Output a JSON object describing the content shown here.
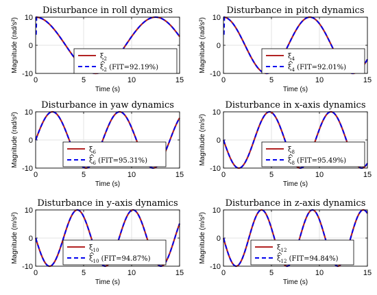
{
  "chart_data": [
    {
      "type": "line",
      "title": "Disturbance in roll dynamics",
      "xlabel": "Time (s)",
      "ylabel": "Magnitude (rad/s²)",
      "xlim": [
        0,
        15
      ],
      "ylim": [
        -10,
        10
      ],
      "xticks": [
        "0",
        "5",
        "10",
        "15"
      ],
      "yticks": [
        "-10",
        "0",
        "10"
      ],
      "wave": {
        "amplitude": 10,
        "period": 12.5,
        "phase": "cos"
      },
      "legend_position": "center-right",
      "series": [
        {
          "name": "ξ2",
          "color": "#b22222",
          "style": "solid"
        },
        {
          "name": "ξ̂2 (FIT=92.19%)",
          "color": "#0000ee",
          "style": "dashed"
        }
      ],
      "legend": [
        {
          "sym": "ξ",
          "sub": "2",
          "hat": false,
          "fit": ""
        },
        {
          "sym": "ξ",
          "sub": "2",
          "hat": true,
          "fit": " (FIT=92.19%)"
        }
      ]
    },
    {
      "type": "line",
      "title": "Disturbance in pitch dynamics",
      "xlabel": "Time (s)",
      "ylabel": "Magnitude (rad/s²)",
      "xlim": [
        0,
        15
      ],
      "ylim": [
        -10,
        10
      ],
      "xticks": [
        "0",
        "5",
        "10",
        "15"
      ],
      "yticks": [
        "-10",
        "0",
        "10"
      ],
      "wave": {
        "amplitude": 10,
        "period": 9.0,
        "phase": "cos"
      },
      "legend_position": "center-right",
      "series": [
        {
          "name": "ξ4",
          "color": "#b22222",
          "style": "solid"
        },
        {
          "name": "ξ̂4 (FIT=92.01%)",
          "color": "#0000ee",
          "style": "dashed"
        }
      ],
      "legend": [
        {
          "sym": "ξ",
          "sub": "4",
          "hat": false,
          "fit": ""
        },
        {
          "sym": "ξ",
          "sub": "4",
          "hat": true,
          "fit": " (FIT=92.01%)"
        }
      ]
    },
    {
      "type": "line",
      "title": "Disturbance in yaw dynamics",
      "xlabel": "Time (s)",
      "ylabel": "Magnitude (rad/s²)",
      "xlim": [
        0,
        15
      ],
      "ylim": [
        -10,
        10
      ],
      "xticks": [
        "0",
        "5",
        "10",
        "15"
      ],
      "yticks": [
        "-10",
        "0",
        "10"
      ],
      "wave": {
        "amplitude": 10,
        "period": 7.0,
        "phase": "sin"
      },
      "legend_position": "bottom-center",
      "series": [
        {
          "name": "ξ6",
          "color": "#b22222",
          "style": "solid"
        },
        {
          "name": "ξ̂6 (FIT=95.31%)",
          "color": "#0000ee",
          "style": "dashed"
        }
      ],
      "legend": [
        {
          "sym": "ξ",
          "sub": "6",
          "hat": false,
          "fit": ""
        },
        {
          "sym": "ξ",
          "sub": "6",
          "hat": true,
          "fit": " (FIT=95.31%)"
        }
      ]
    },
    {
      "type": "line",
      "title": "Disturbance in x-axis dynamics",
      "xlabel": "Time (s)",
      "ylabel": "Magnitude (m/s²)",
      "xlim": [
        0,
        15
      ],
      "ylim": [
        -10,
        10
      ],
      "xticks": [
        "0",
        "5",
        "10",
        "15"
      ],
      "yticks": [
        "-10",
        "0",
        "10"
      ],
      "wave": {
        "amplitude": 10,
        "period": 6.4,
        "phase": "-sin"
      },
      "legend_position": "bottom-right",
      "series": [
        {
          "name": "ξ8",
          "color": "#b22222",
          "style": "solid"
        },
        {
          "name": "ξ̂8 (FIT=95.49%)",
          "color": "#0000ee",
          "style": "dashed"
        }
      ],
      "legend": [
        {
          "sym": "ξ",
          "sub": "8",
          "hat": false,
          "fit": ""
        },
        {
          "sym": "ξ",
          "sub": "8",
          "hat": true,
          "fit": " (FIT=95.49%)"
        }
      ]
    },
    {
      "type": "line",
      "title": "Disturbance in y-axis dynamics",
      "xlabel": "Time (s)",
      "ylabel": "Magnitude (m/s²)",
      "xlim": [
        0,
        15
      ],
      "ylim": [
        -10,
        10
      ],
      "xticks": [
        "0",
        "5",
        "10",
        "15"
      ],
      "yticks": [
        "-10",
        "0",
        "10"
      ],
      "wave": {
        "amplitude": 10,
        "period": 5.8,
        "phase": "-sin"
      },
      "legend_position": "bottom-center",
      "series": [
        {
          "name": "ξ10",
          "color": "#b22222",
          "style": "solid"
        },
        {
          "name": "ξ̂10 (FIT=94.87%)",
          "color": "#0000ee",
          "style": "dashed"
        }
      ],
      "legend": [
        {
          "sym": "ξ",
          "sub": "10",
          "hat": false,
          "fit": ""
        },
        {
          "sym": "ξ",
          "sub": "10",
          "hat": true,
          "fit": " (FIT=94.87%)"
        }
      ]
    },
    {
      "type": "line",
      "title": "Disturbance in z-axis dynamics",
      "xlabel": "Time (s)",
      "ylabel": "Magnitude (m/s²)",
      "xlim": [
        0,
        15
      ],
      "ylim": [
        -10,
        10
      ],
      "xticks": [
        "0",
        "5",
        "10",
        "15"
      ],
      "yticks": [
        "-10",
        "0",
        "10"
      ],
      "wave": {
        "amplitude": 10,
        "period": 5.3,
        "phase": "-sin"
      },
      "legend_position": "bottom-center",
      "series": [
        {
          "name": "ξ12",
          "color": "#b22222",
          "style": "solid"
        },
        {
          "name": "ξ̂12 (FIT=94.84%)",
          "color": "#0000ee",
          "style": "dashed"
        }
      ],
      "legend": [
        {
          "sym": "ξ",
          "sub": "12",
          "hat": false,
          "fit": ""
        },
        {
          "sym": "ξ",
          "sub": "12",
          "hat": true,
          "fit": " (FIT=94.84%)"
        }
      ]
    }
  ]
}
